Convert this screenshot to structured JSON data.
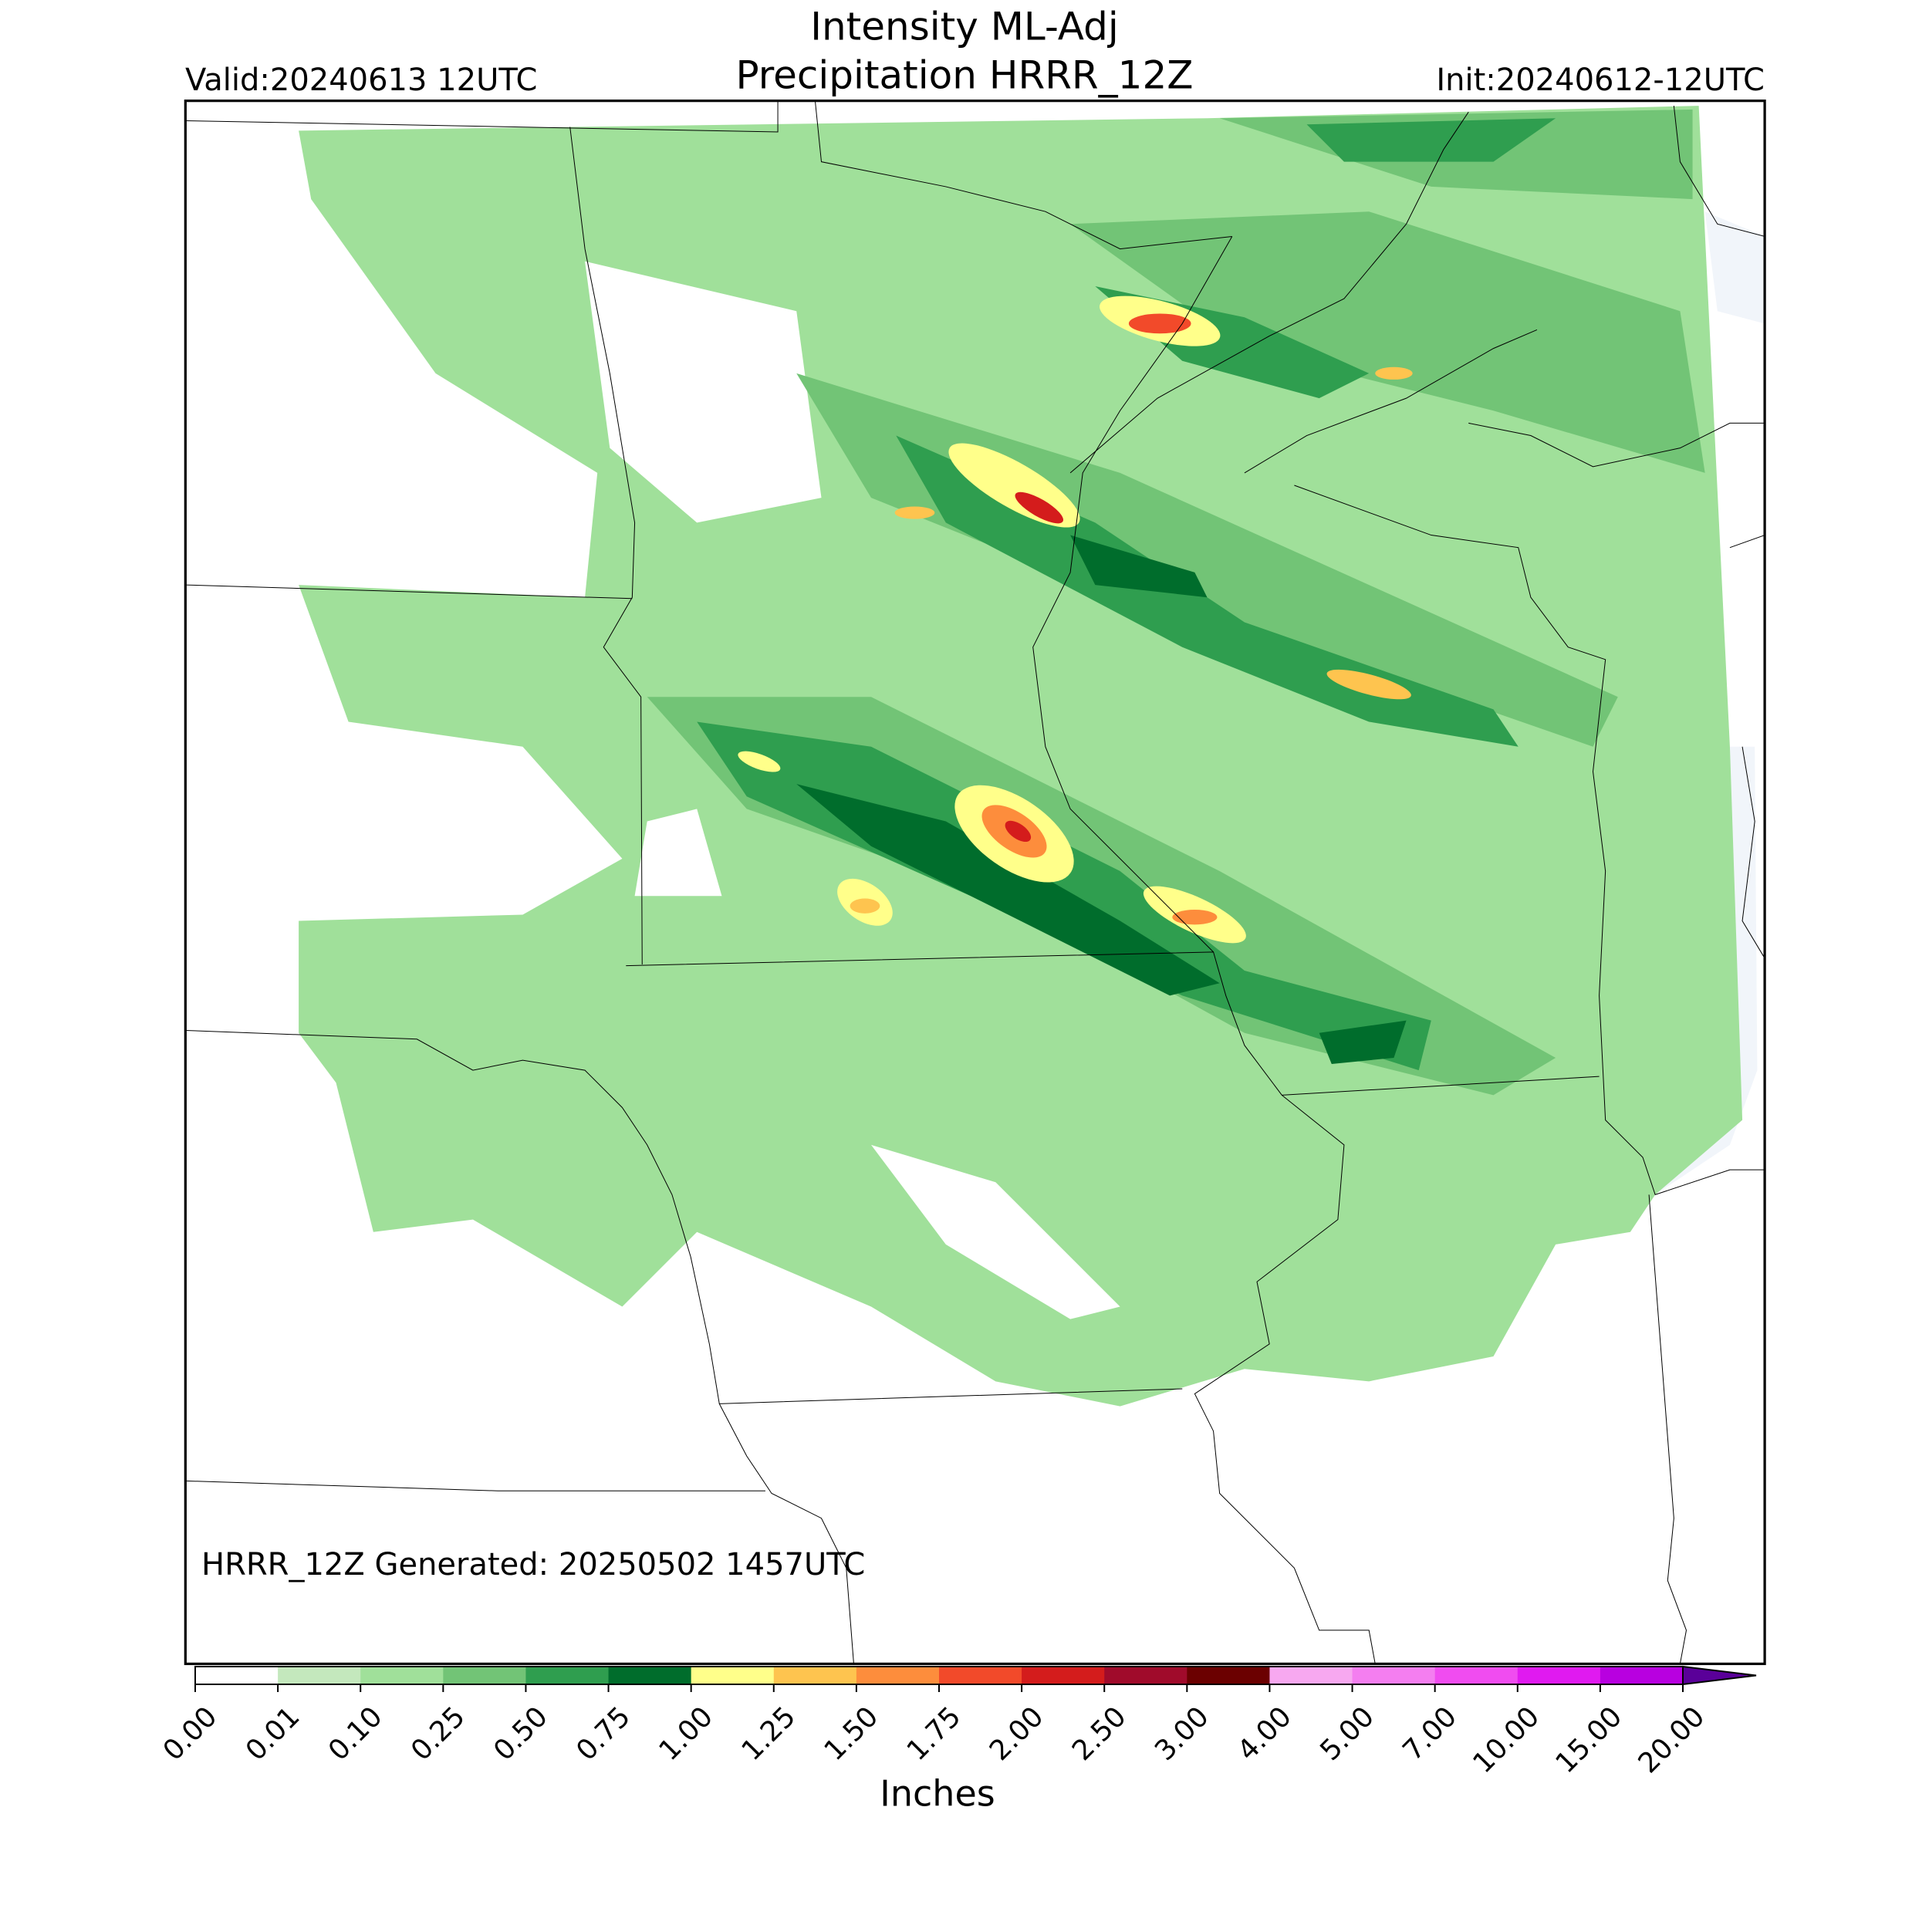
{
  "header": {
    "title": "Intensity ML-Adj",
    "subtitle": "Precipitation HRRR_12Z",
    "valid": "Valid:20240613 12UTC",
    "init": "Init:20240612-12UTC"
  },
  "map": {
    "note": "HRRR_12Z Generated: 20250502 1457UTC"
  },
  "colorbar": {
    "label": "Inches",
    "ticks": [
      {
        "value": 0,
        "label": "0.00"
      },
      {
        "value": 0.01,
        "label": "0.01"
      },
      {
        "value": 0.1,
        "label": "0.10"
      },
      {
        "value": 0.25,
        "label": "0.25"
      },
      {
        "value": 0.5,
        "label": "0.50"
      },
      {
        "value": 0.75,
        "label": "0.75"
      },
      {
        "value": 1,
        "label": "1.00"
      },
      {
        "value": 1.25,
        "label": "1.25"
      },
      {
        "value": 1.5,
        "label": "1.50"
      },
      {
        "value": 1.75,
        "label": "1.75"
      },
      {
        "value": 2,
        "label": "2.00"
      },
      {
        "value": 2.5,
        "label": "2.50"
      },
      {
        "value": 3,
        "label": "3.00"
      },
      {
        "value": 4,
        "label": "4.00"
      },
      {
        "value": 5,
        "label": "5.00"
      },
      {
        "value": 7,
        "label": "7.00"
      },
      {
        "value": 10,
        "label": "10.00"
      },
      {
        "value": 15,
        "label": "15.00"
      },
      {
        "value": 20,
        "label": "20.00"
      }
    ],
    "colors": [
      "#ffffff",
      "#c4e8bd",
      "#a0e09a",
      "#72c476",
      "#2f9e4f",
      "#006d2c",
      "#ffff8a",
      "#fec44f",
      "#fd8d3c",
      "#f24a2a",
      "#d41c1c",
      "#a00b2b",
      "#6b0000",
      "#f7a8f0",
      "#f47ef0",
      "#f04cf0",
      "#e01af0",
      "#b800e0",
      "#8a00cc"
    ],
    "over_color": "#5a0099"
  }
}
